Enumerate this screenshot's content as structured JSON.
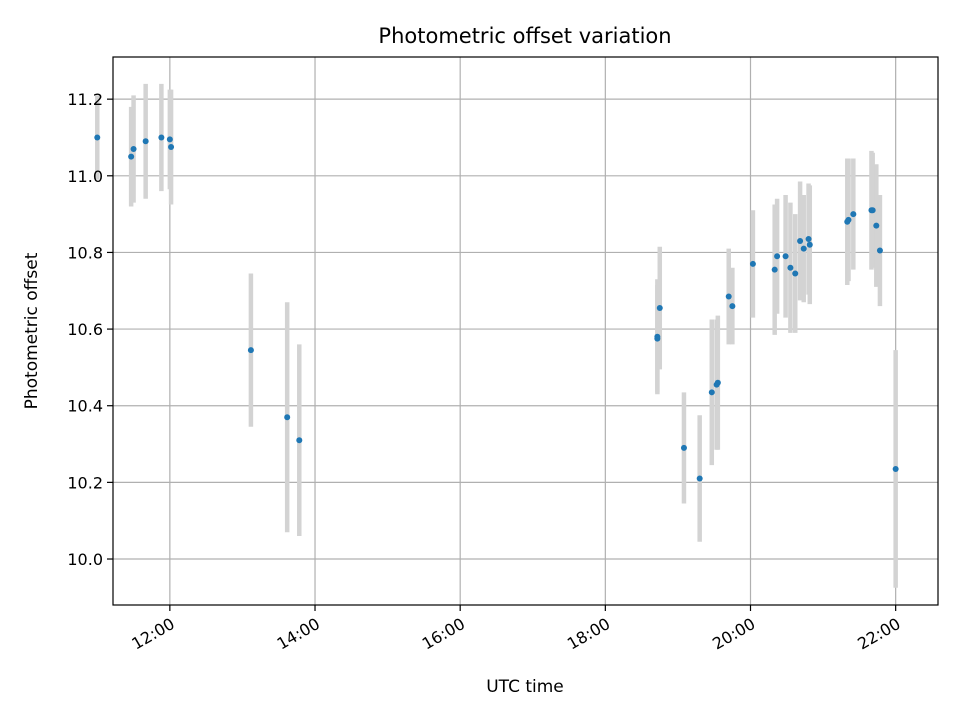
{
  "chart_data": {
    "type": "scatter",
    "title": "Photometric offset variation",
    "xlabel": "UTC time",
    "ylabel": "Photometric offset",
    "xlim": [
      "11:13",
      "22:35"
    ],
    "ylim": [
      9.88,
      11.31
    ],
    "xticks": [
      "12:00",
      "14:00",
      "16:00",
      "18:00",
      "20:00",
      "22:00"
    ],
    "yticks": [
      10.0,
      10.2,
      10.4,
      10.6,
      10.8,
      11.0,
      11.2
    ],
    "grid": true,
    "colors": {
      "point": "#1f77b4",
      "errorbar": "#d3d3d3",
      "grid": "#b0b0b0"
    },
    "points": [
      {
        "x": "11:00",
        "y": 11.1,
        "err": 0.11
      },
      {
        "x": "11:28",
        "y": 11.05,
        "err": 0.13
      },
      {
        "x": "11:30",
        "y": 11.07,
        "err": 0.14
      },
      {
        "x": "11:40",
        "y": 11.09,
        "err": 0.15
      },
      {
        "x": "11:53",
        "y": 11.1,
        "err": 0.14
      },
      {
        "x": "12:00",
        "y": 11.095,
        "err": 0.13
      },
      {
        "x": "12:01",
        "y": 11.075,
        "err": 0.15
      },
      {
        "x": "13:07",
        "y": 10.545,
        "err": 0.2
      },
      {
        "x": "13:37",
        "y": 10.37,
        "err": 0.3
      },
      {
        "x": "13:47",
        "y": 10.31,
        "err": 0.25
      },
      {
        "x": "18:43",
        "y": 10.58,
        "err": 0.15
      },
      {
        "x": "18:43",
        "y": 10.575,
        "err": 0.14
      },
      {
        "x": "18:45",
        "y": 10.655,
        "err": 0.16
      },
      {
        "x": "19:05",
        "y": 10.29,
        "err": 0.145
      },
      {
        "x": "19:18",
        "y": 10.21,
        "err": 0.165
      },
      {
        "x": "19:28",
        "y": 10.435,
        "err": 0.19
      },
      {
        "x": "19:32",
        "y": 10.455,
        "err": 0.17
      },
      {
        "x": "19:33",
        "y": 10.46,
        "err": 0.175
      },
      {
        "x": "19:42",
        "y": 10.685,
        "err": 0.125
      },
      {
        "x": "19:45",
        "y": 10.66,
        "err": 0.1
      },
      {
        "x": "20:02",
        "y": 10.77,
        "err": 0.14
      },
      {
        "x": "20:20",
        "y": 10.755,
        "err": 0.17
      },
      {
        "x": "20:22",
        "y": 10.79,
        "err": 0.15
      },
      {
        "x": "20:29",
        "y": 10.79,
        "err": 0.16
      },
      {
        "x": "20:33",
        "y": 10.76,
        "err": 0.17
      },
      {
        "x": "20:37",
        "y": 10.745,
        "err": 0.155
      },
      {
        "x": "20:41",
        "y": 10.83,
        "err": 0.155
      },
      {
        "x": "20:44",
        "y": 10.81,
        "err": 0.14
      },
      {
        "x": "20:48",
        "y": 10.835,
        "err": 0.145
      },
      {
        "x": "20:49",
        "y": 10.82,
        "err": 0.155
      },
      {
        "x": "21:20",
        "y": 10.88,
        "err": 0.165
      },
      {
        "x": "21:21",
        "y": 10.885,
        "err": 0.16
      },
      {
        "x": "21:25",
        "y": 10.9,
        "err": 0.145
      },
      {
        "x": "21:40",
        "y": 10.91,
        "err": 0.155
      },
      {
        "x": "21:41",
        "y": 10.91,
        "err": 0.15
      },
      {
        "x": "21:44",
        "y": 10.87,
        "err": 0.16
      },
      {
        "x": "21:47",
        "y": 10.805,
        "err": 0.145
      },
      {
        "x": "22:00",
        "y": 10.235,
        "err": 0.31
      }
    ]
  }
}
